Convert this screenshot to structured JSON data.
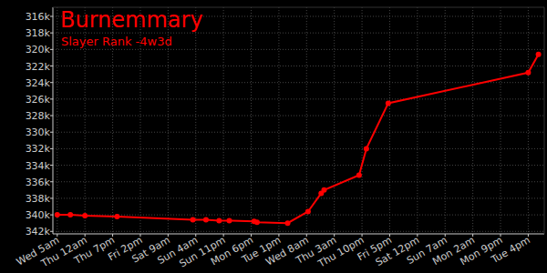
{
  "chart_data": {
    "type": "line",
    "title": "Burnemmary",
    "subtitle": "Slayer Rank -4w3d",
    "color": "#ff0000",
    "marker": "circle",
    "grid": true,
    "x": [
      0,
      9,
      19,
      41,
      93,
      102,
      111,
      118,
      135,
      137,
      158,
      172,
      181,
      183,
      207,
      212,
      227,
      323,
      330
    ],
    "values": [
      340000,
      340000,
      340100,
      340200,
      340600,
      340600,
      340700,
      340700,
      340800,
      340900,
      341000,
      339600,
      337400,
      337000,
      335200,
      332000,
      326500,
      322800,
      320600
    ],
    "xlim": [
      -3,
      334
    ],
    "xticks": [
      {
        "value": 0,
        "label": "Wed 5am"
      },
      {
        "value": 19,
        "label": "Thu 12am"
      },
      {
        "value": 38,
        "label": "Thu 7pm"
      },
      {
        "value": 57,
        "label": "Fri 2pm"
      },
      {
        "value": 76,
        "label": "Sat 9am"
      },
      {
        "value": 95,
        "label": "Sun 4am"
      },
      {
        "value": 114,
        "label": "Sun 11pm"
      },
      {
        "value": 133,
        "label": "Mon 6pm"
      },
      {
        "value": 152,
        "label": "Tue 1pm"
      },
      {
        "value": 171,
        "label": "Wed 8am"
      },
      {
        "value": 190,
        "label": "Thu 3am"
      },
      {
        "value": 209,
        "label": "Thu 10pm"
      },
      {
        "value": 228,
        "label": "Fri 5pm"
      },
      {
        "value": 247,
        "label": "Sat 12pm"
      },
      {
        "value": 266,
        "label": "Sun 7am"
      },
      {
        "value": 285,
        "label": "Mon 2am"
      },
      {
        "value": 304,
        "label": "Mon 9pm"
      },
      {
        "value": 323,
        "label": "Tue 4pm"
      }
    ],
    "ylim": [
      342300,
      314900
    ],
    "yticks": [
      {
        "value": 316000,
        "label": "316k"
      },
      {
        "value": 318000,
        "label": "318k"
      },
      {
        "value": 320000,
        "label": "320k"
      },
      {
        "value": 322000,
        "label": "322k"
      },
      {
        "value": 324000,
        "label": "324k"
      },
      {
        "value": 326000,
        "label": "326k"
      },
      {
        "value": 328000,
        "label": "328k"
      },
      {
        "value": 330000,
        "label": "330k"
      },
      {
        "value": 332000,
        "label": "332k"
      },
      {
        "value": 334000,
        "label": "334k"
      },
      {
        "value": 336000,
        "label": "336k"
      },
      {
        "value": 338000,
        "label": "338k"
      },
      {
        "value": 340000,
        "label": "340k"
      },
      {
        "value": 342000,
        "label": "342k"
      }
    ]
  }
}
